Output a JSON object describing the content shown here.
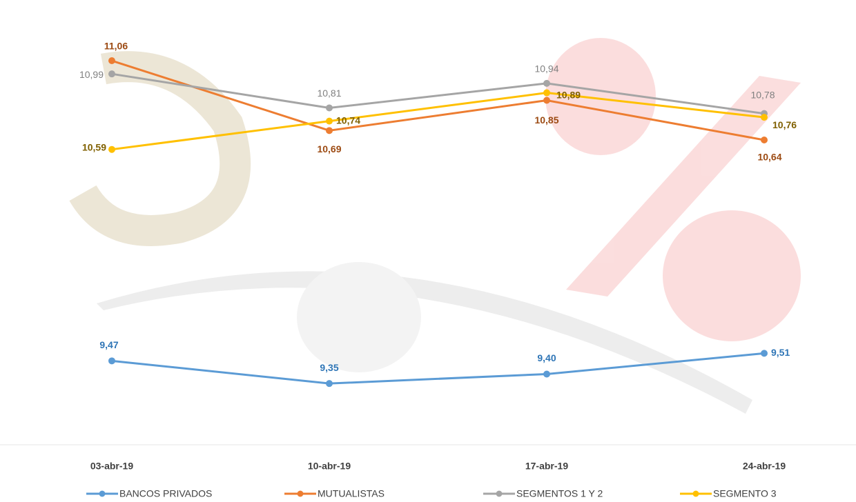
{
  "chart_data": {
    "type": "line",
    "categories": [
      "03-abr-19",
      "10-abr-19",
      "17-abr-19",
      "24-abr-19"
    ],
    "series": [
      {
        "name": "BANCOS PRIVADOS",
        "color": "#5b9bd5",
        "values": [
          9.47,
          9.35,
          9.4,
          9.51
        ],
        "value_labels": [
          "9,47",
          "9,35",
          "9,40",
          "9,51"
        ]
      },
      {
        "name": "MUTUALISTAS",
        "color": "#ed7d31",
        "values": [
          11.06,
          10.69,
          10.85,
          10.64
        ],
        "value_labels": [
          "11,06",
          "10,69",
          "10,85",
          "10,64"
        ]
      },
      {
        "name": "SEGMENTOS 1 Y 2",
        "color": "#a5a5a5",
        "values": [
          10.99,
          10.81,
          10.94,
          10.78
        ],
        "value_labels": [
          "10,99",
          "10,81",
          "10,94",
          "10,78"
        ]
      },
      {
        "name": "SEGMENTO 3",
        "color": "#ffc000",
        "values": [
          10.59,
          10.74,
          10.89,
          10.76
        ],
        "value_labels": [
          "10,59",
          "10,74",
          "10,89",
          "10,76"
        ]
      }
    ],
    "ylim": [
      9,
      11.25
    ],
    "legend": "bottom"
  }
}
